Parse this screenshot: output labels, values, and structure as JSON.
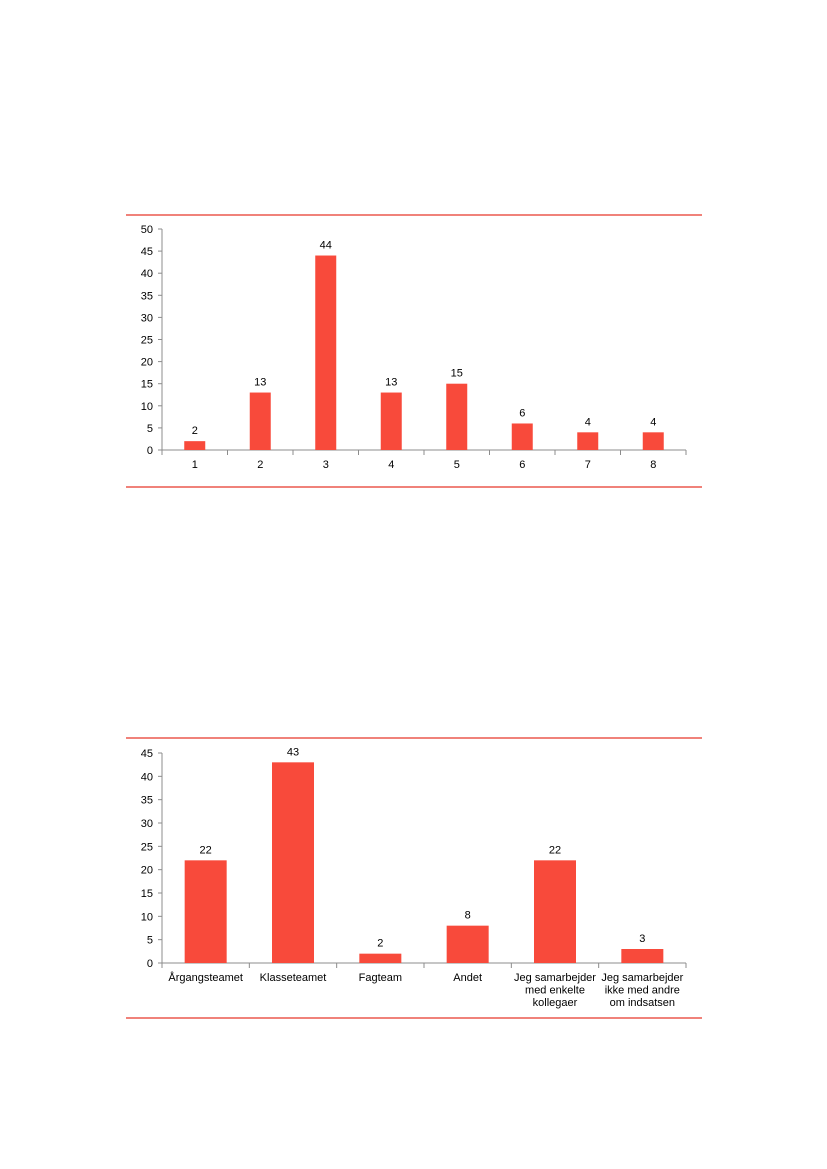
{
  "accent_color": "#f84a3b",
  "rule_color": "#e8372a",
  "chart_data": [
    {
      "type": "bar",
      "categories": [
        "1",
        "2",
        "3",
        "4",
        "5",
        "6",
        "7",
        "8"
      ],
      "values": [
        2,
        13,
        44,
        13,
        15,
        6,
        4,
        4
      ],
      "data_labels": [
        "2",
        "13",
        "44",
        "13",
        "15",
        "6",
        "4",
        "4"
      ],
      "ylim": [
        0,
        50
      ],
      "yticks": [
        0,
        5,
        10,
        15,
        20,
        25,
        30,
        35,
        40,
        45,
        50
      ],
      "grid": false,
      "title": "",
      "xlabel": "",
      "ylabel": ""
    },
    {
      "type": "bar",
      "categories": [
        [
          "Årgangsteamet"
        ],
        [
          "Klasseteamet"
        ],
        [
          "Fagteam"
        ],
        [
          "Andet"
        ],
        [
          "Jeg samarbejder",
          "med enkelte",
          "kollegaer"
        ],
        [
          "Jeg samarbejder",
          "ikke med andre",
          "om indsatsen"
        ]
      ],
      "values": [
        22,
        43,
        2,
        8,
        22,
        3
      ],
      "data_labels": [
        "22",
        "43",
        "2",
        "8",
        "22",
        "3"
      ],
      "ylim": [
        0,
        45
      ],
      "yticks": [
        0,
        5,
        10,
        15,
        20,
        25,
        30,
        35,
        40,
        45
      ],
      "grid": false,
      "title": "",
      "xlabel": "",
      "ylabel": ""
    }
  ]
}
